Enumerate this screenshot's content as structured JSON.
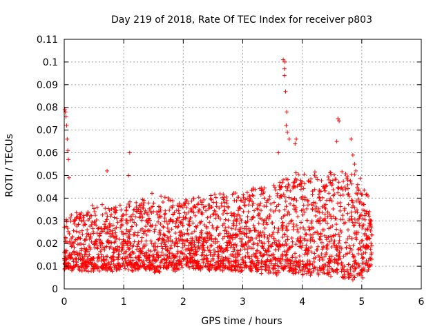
{
  "chart_data": {
    "type": "scatter",
    "title": "Day 219 of 2018, Rate Of TEC Index for receiver p803",
    "xlabel": "GPS time / hours",
    "ylabel": "ROTI / TECUs",
    "xlim": [
      0,
      6
    ],
    "ylim": [
      0,
      0.11
    ],
    "xticks": [
      "0",
      "1",
      "2",
      "3",
      "4",
      "5",
      "6"
    ],
    "yticks": [
      "0",
      "0.01",
      "0.02",
      "0.03",
      "0.04",
      "0.05",
      "0.06",
      "0.07",
      "0.08",
      "0.09",
      "0.1",
      "0.11"
    ],
    "grid": true,
    "legend": "none",
    "marker": "plus",
    "marker_color": "#ff0000",
    "point_spacing_hours": 0.004,
    "time_range": [
      0.0,
      5.17
    ],
    "series": [
      {
        "name": "ROTI",
        "description_points": [
          {
            "x": 0.01,
            "y": 0.079
          },
          {
            "x": 0.02,
            "y": 0.078
          },
          {
            "x": 0.03,
            "y": 0.076
          },
          {
            "x": 0.04,
            "y": 0.072
          },
          {
            "x": 0.05,
            "y": 0.066
          },
          {
            "x": 0.06,
            "y": 0.061
          },
          {
            "x": 0.07,
            "y": 0.057
          },
          {
            "x": 0.08,
            "y": 0.049
          },
          {
            "x": 0.72,
            "y": 0.052
          },
          {
            "x": 1.1,
            "y": 0.06
          },
          {
            "x": 1.08,
            "y": 0.05
          },
          {
            "x": 3.6,
            "y": 0.06
          },
          {
            "x": 3.68,
            "y": 0.101
          },
          {
            "x": 3.71,
            "y": 0.1
          },
          {
            "x": 3.7,
            "y": 0.097
          },
          {
            "x": 3.7,
            "y": 0.094
          },
          {
            "x": 3.72,
            "y": 0.087
          },
          {
            "x": 3.74,
            "y": 0.078
          },
          {
            "x": 3.73,
            "y": 0.072
          },
          {
            "x": 3.75,
            "y": 0.069
          },
          {
            "x": 3.78,
            "y": 0.066
          },
          {
            "x": 3.9,
            "y": 0.066
          },
          {
            "x": 3.88,
            "y": 0.064
          },
          {
            "x": 4.6,
            "y": 0.075
          },
          {
            "x": 4.62,
            "y": 0.074
          },
          {
            "x": 4.58,
            "y": 0.065
          },
          {
            "x": 4.82,
            "y": 0.066
          },
          {
            "x": 4.85,
            "y": 0.059
          },
          {
            "x": 4.88,
            "y": 0.055
          },
          {
            "x": 4.9,
            "y": 0.052
          },
          {
            "x": 4.85,
            "y": 0.004
          },
          {
            "x": 4.88,
            "y": 0.005
          },
          {
            "x": 5.15,
            "y": 0.03
          }
        ],
        "baseline_envelope": [
          {
            "x": 0.0,
            "low": 0.008,
            "high": 0.03
          },
          {
            "x": 0.5,
            "low": 0.007,
            "high": 0.035
          },
          {
            "x": 1.0,
            "low": 0.008,
            "high": 0.036
          },
          {
            "x": 1.5,
            "low": 0.007,
            "high": 0.04
          },
          {
            "x": 2.0,
            "low": 0.008,
            "high": 0.038
          },
          {
            "x": 2.5,
            "low": 0.008,
            "high": 0.04
          },
          {
            "x": 3.0,
            "low": 0.007,
            "high": 0.042
          },
          {
            "x": 3.5,
            "low": 0.006,
            "high": 0.045
          },
          {
            "x": 4.0,
            "low": 0.006,
            "high": 0.05
          },
          {
            "x": 4.5,
            "low": 0.005,
            "high": 0.05
          },
          {
            "x": 5.0,
            "low": 0.004,
            "high": 0.046
          },
          {
            "x": 5.17,
            "low": 0.01,
            "high": 0.035
          }
        ]
      }
    ]
  }
}
